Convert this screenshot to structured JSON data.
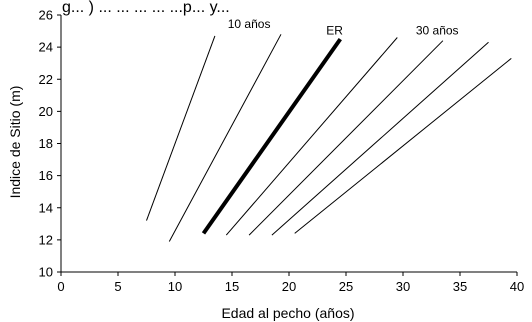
{
  "caption_fragment": "g... ) ... ... ... ... ...p... y...",
  "chart_data": {
    "type": "line",
    "title": "",
    "xlabel": "Edad al pecho (años)",
    "ylabel": "Indice de Sitio (m)",
    "xlim": [
      0,
      40
    ],
    "ylim": [
      10,
      26
    ],
    "x_ticks": [
      0,
      5,
      10,
      15,
      20,
      25,
      30,
      35,
      40
    ],
    "y_ticks": [
      10,
      12,
      14,
      16,
      18,
      20,
      22,
      24,
      26
    ],
    "grid": false,
    "legend": "none",
    "series": [
      {
        "label": "10 años",
        "emphasis": false,
        "points": [
          [
            7.5,
            13.2
          ],
          [
            13.5,
            24.7
          ]
        ]
      },
      {
        "label": "",
        "emphasis": false,
        "points": [
          [
            9.5,
            11.9
          ],
          [
            19.3,
            24.8
          ]
        ]
      },
      {
        "label": "ER",
        "emphasis": true,
        "points": [
          [
            12.5,
            12.4
          ],
          [
            24.5,
            24.5
          ]
        ]
      },
      {
        "label": "",
        "emphasis": false,
        "points": [
          [
            14.5,
            12.3
          ],
          [
            29.5,
            24.6
          ]
        ]
      },
      {
        "label": "30 años",
        "emphasis": false,
        "points": [
          [
            16.5,
            12.3
          ],
          [
            33.5,
            24.4
          ]
        ]
      },
      {
        "label": "",
        "emphasis": false,
        "points": [
          [
            18.5,
            12.3
          ],
          [
            37.5,
            24.3
          ]
        ]
      },
      {
        "label": "",
        "emphasis": false,
        "points": [
          [
            20.5,
            12.4
          ],
          [
            39.5,
            23.3
          ]
        ]
      }
    ],
    "annotations": [
      {
        "text": "10 años",
        "x": 16.5,
        "y": 25.2
      },
      {
        "text": "ER",
        "x": 24.0,
        "y": 24.8
      },
      {
        "text": "30 años",
        "x": 33.0,
        "y": 24.8
      }
    ]
  }
}
